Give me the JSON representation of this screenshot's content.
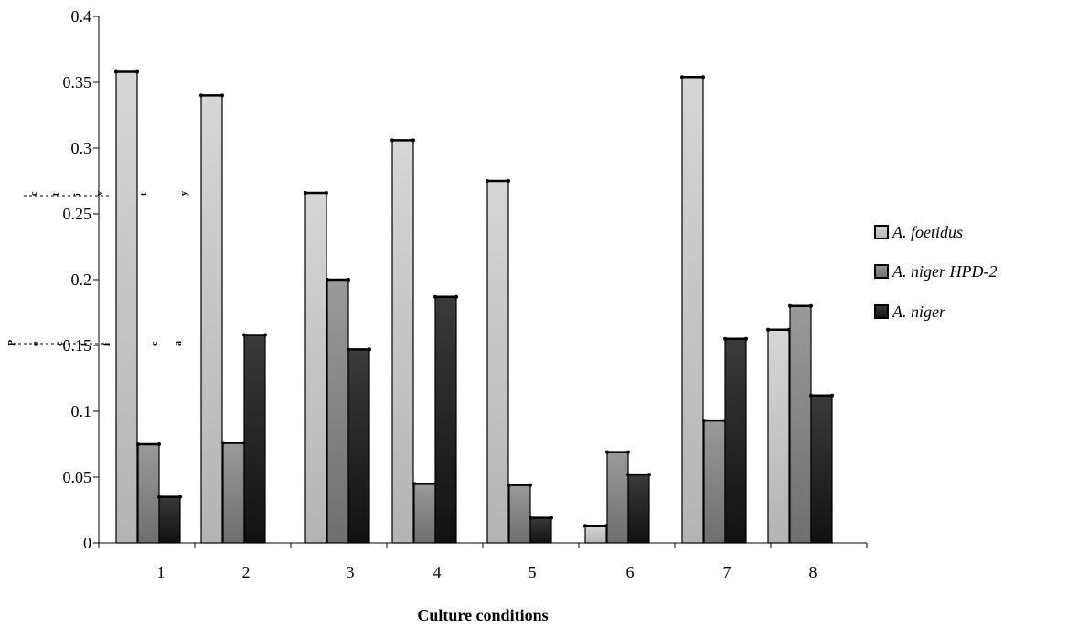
{
  "chart_data": {
    "type": "bar",
    "categories": [
      "1",
      "2",
      "3",
      "4",
      "5",
      "6",
      "7",
      "8"
    ],
    "series": [
      {
        "name": "A. foetidus",
        "values": [
          0.358,
          0.34,
          0.266,
          0.306,
          0.275,
          0.013,
          0.354,
          0.162
        ],
        "color": "#c8c8c8"
      },
      {
        "name": "A. niger HPD-2",
        "values": [
          0.075,
          0.076,
          0.2,
          0.045,
          0.044,
          0.069,
          0.093,
          0.18
        ],
        "color": "#828282"
      },
      {
        "name": "A. niger",
        "values": [
          0.035,
          0.158,
          0.147,
          0.187,
          0.019,
          0.052,
          0.155,
          0.112
        ],
        "color": "#1e1e1e"
      }
    ],
    "xlabel": "Culture conditions",
    "ylim": [
      0,
      0.4
    ],
    "yticks": [
      0,
      0.05,
      0.1,
      0.15,
      0.2,
      0.25,
      0.3,
      0.35,
      0.4
    ],
    "ytick_labels": [
      "0",
      "0.05",
      "0.1",
      "0.15",
      "0.2",
      "0.25",
      "0.3",
      "0.35",
      "0.4"
    ],
    "ylabel_glyphs": [
      "P",
      "e",
      "c",
      "i",
      "f",
      "i",
      "c",
      "a",
      "c",
      "t",
      "i",
      "v",
      "i",
      "t",
      "y"
    ],
    "grid": false,
    "legend_position": "right"
  }
}
